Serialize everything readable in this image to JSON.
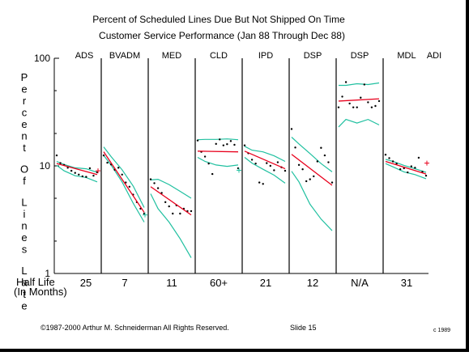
{
  "slide": {
    "title_line1": "Percent of Scheduled Lines Due But Not Shipped On Time",
    "title_line2": "Customer Service Performance (Jan 88 Through Dec 88)",
    "footer_copyright": "©1987-2000 Arthur M. Schneiderman All Rights Reserved.",
    "footer_slide": "Slide 15",
    "footer_corner": "c 1989"
  },
  "colors": {
    "trend": "#e8001c",
    "band": "#20c0a0",
    "axis": "#000000"
  },
  "chart_data": {
    "type": "scatter",
    "title": "Percent of Scheduled Lines Due But Not Shipped On Time",
    "subtitle": "Customer Service Performance (Jan 88 Through Dec 88)",
    "ylabel": "Percent Of Lines Late",
    "y_scale": "log",
    "ylim": [
      1,
      100
    ],
    "y_ticks": [
      "100",
      "10",
      "1"
    ],
    "half_life_header": [
      "Half Life",
      "(In Months)"
    ],
    "x": [
      1,
      2,
      3,
      4,
      5,
      6,
      7,
      8,
      9,
      10,
      11,
      12
    ],
    "segments": [
      {
        "name": "ADS",
        "half_life": "25",
        "points": [
          12.5,
          10.6,
          10.2,
          9.6,
          9.0,
          8.6,
          8.3,
          8.0,
          7.9,
          9.5,
          8.1,
          8.7
        ],
        "trend": [
          10.5,
          8.3
        ],
        "upper": [
          [
            1,
            11.0
          ],
          [
            3,
            10.3
          ],
          [
            6,
            9.6
          ],
          [
            9,
            9.4
          ],
          [
            12,
            8.7
          ]
        ],
        "lower": [
          [
            1,
            10.1
          ],
          [
            3,
            9.0
          ],
          [
            6,
            8.1
          ],
          [
            9,
            7.8
          ],
          [
            12,
            7.1
          ]
        ],
        "last_plus": 9.0
      },
      {
        "name": "BVADM",
        "half_life": "7",
        "points": [
          12.5,
          10.7,
          10.3,
          9.2,
          9.6,
          8.3,
          7.0,
          6.4,
          5.4,
          4.6,
          4.0,
          3.6
        ],
        "trend": [
          13.5,
          3.7
        ],
        "upper": [
          [
            1,
            15.0
          ],
          [
            3,
            12.2
          ],
          [
            6,
            9.2
          ],
          [
            9,
            6.5
          ],
          [
            12,
            4.1
          ]
        ],
        "lower": [
          [
            1,
            12.5
          ],
          [
            3,
            10.2
          ],
          [
            6,
            7.1
          ],
          [
            9,
            4.5
          ],
          [
            12,
            3.0
          ]
        ],
        "last_plus": 3.5
      },
      {
        "name": "MED",
        "half_life": "11",
        "points": [
          7.5,
          6.9,
          6.2,
          5.6,
          4.6,
          4.2,
          3.6,
          4.3,
          3.6,
          4.0,
          3.8,
          3.8
        ],
        "trend": [
          6.4,
          3.5
        ],
        "upper": [
          [
            1,
            7.4
          ],
          [
            3,
            7.5
          ],
          [
            6,
            6.7
          ],
          [
            9,
            5.8
          ],
          [
            12,
            5.0
          ]
        ],
        "lower": [
          [
            1,
            5.5
          ],
          [
            3,
            4.0
          ],
          [
            6,
            3.0
          ],
          [
            9,
            2.1
          ],
          [
            12,
            1.4
          ]
        ]
      },
      {
        "name": "CLD",
        "half_life": "60+",
        "points": [
          17.2,
          13.5,
          12.2,
          10.5,
          8.4,
          16.0,
          17.6,
          15.5,
          15.9,
          17.0,
          15.7,
          9.5
        ],
        "trend": [
          13.7,
          13.5
        ],
        "upper": [
          [
            1,
            17.5
          ],
          [
            3,
            17.6
          ],
          [
            6,
            17.6
          ],
          [
            9,
            17.8
          ],
          [
            12,
            17.5
          ]
        ],
        "lower": [
          [
            1,
            12.0
          ],
          [
            3,
            11.0
          ],
          [
            6,
            10.2
          ],
          [
            9,
            9.9
          ],
          [
            12,
            10.2
          ]
        ],
        "last_plus": 9.1
      },
      {
        "name": "IPD",
        "half_life": "21",
        "points": [
          15.5,
          13.1,
          11.4,
          10.5,
          7.0,
          6.8,
          10.6,
          10.0,
          9.1,
          10.8,
          9.7,
          9.0
        ],
        "trend": [
          13.7,
          9.4
        ],
        "upper": [
          [
            1,
            15.2
          ],
          [
            3,
            14.0
          ],
          [
            6,
            13.5
          ],
          [
            9,
            12.4
          ],
          [
            12,
            11.0
          ]
        ],
        "lower": [
          [
            1,
            12.0
          ],
          [
            3,
            10.6
          ],
          [
            6,
            9.3
          ],
          [
            9,
            8.2
          ],
          [
            12,
            6.9
          ]
        ]
      },
      {
        "name": "DSP",
        "half_life": "12",
        "points": [
          22.0,
          14.8,
          10.2,
          9.3,
          7.2,
          7.5,
          8.0,
          11.0,
          14.7,
          12.5,
          10.8,
          7.0
        ],
        "trend": [
          12.8,
          6.6
        ],
        "upper": [
          [
            1,
            18.5
          ],
          [
            3,
            16.0
          ],
          [
            6,
            13.0
          ],
          [
            9,
            10.5
          ],
          [
            12,
            8.8
          ]
        ],
        "lower": [
          [
            1,
            8.9
          ],
          [
            3,
            7.1
          ],
          [
            6,
            4.4
          ],
          [
            9,
            3.2
          ],
          [
            12,
            2.5
          ]
        ]
      },
      {
        "name": "DSP",
        "half_life": "N/A",
        "points": [
          35.0,
          44.0,
          60.0,
          38.0,
          35.0,
          35.0,
          43.0,
          57.0,
          39.0,
          35.0,
          36.0,
          40.0
        ],
        "trend": [
          40.0,
          42.0
        ],
        "upper": [
          [
            1,
            56.0
          ],
          [
            3,
            56.0
          ],
          [
            6,
            58.0
          ],
          [
            9,
            57.0
          ],
          [
            12,
            59.0
          ]
        ],
        "lower": [
          [
            1,
            23.0
          ],
          [
            3,
            27.0
          ],
          [
            6,
            25.0
          ],
          [
            9,
            27.0
          ],
          [
            12,
            24.0
          ]
        ]
      },
      {
        "name": "MDL",
        "half_life": "31",
        "points": [
          12.7,
          11.8,
          11.0,
          10.5,
          9.3,
          9.5,
          8.7,
          9.9,
          9.6,
          11.9,
          8.8,
          8.1
        ],
        "trend": [
          11.0,
          8.4
        ],
        "upper": [
          [
            1,
            11.5
          ],
          [
            3,
            11.0
          ],
          [
            6,
            10.1
          ],
          [
            9,
            9.4
          ],
          [
            12,
            8.7
          ]
        ],
        "lower": [
          [
            1,
            10.5
          ],
          [
            3,
            9.8
          ],
          [
            6,
            8.8
          ],
          [
            9,
            8.3
          ],
          [
            12,
            7.6
          ]
        ],
        "last_plus": 10.6
      }
    ],
    "extra_label": "ADI",
    "grid": false,
    "legend": "none"
  }
}
